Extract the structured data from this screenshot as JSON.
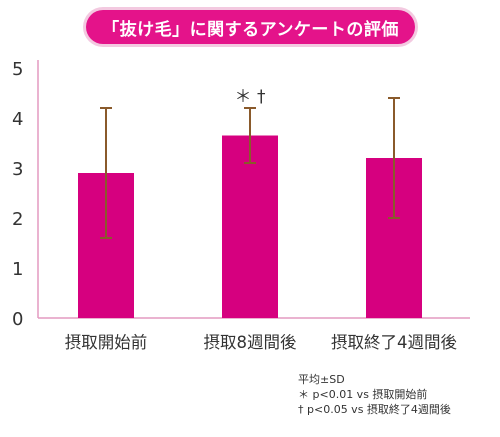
{
  "chart_data": {
    "type": "bar",
    "title": "「抜け毛」に関するアンケートの評価",
    "categories": [
      "摂取開始前",
      "摂取8週間後",
      "摂取終了4週間後"
    ],
    "values": [
      2.9,
      3.65,
      3.2
    ],
    "errors": [
      1.3,
      0.55,
      1.2
    ],
    "significance_marks": [
      "",
      "＊ †",
      ""
    ],
    "ylim": [
      0,
      5
    ],
    "yticks": [
      "0",
      "1",
      "2",
      "3",
      "4",
      "5"
    ],
    "xlabel": "",
    "ylabel": "",
    "grid": false,
    "bar_color": "#d6007f",
    "error_color": "#8a5a2b",
    "axis_color": "#e39ac1"
  },
  "notes": {
    "line1": "平均±SD",
    "line2": "＊ p<0.01 vs 摂取開始前",
    "line3": "† p<0.05 vs  摂取終了4週間後"
  }
}
